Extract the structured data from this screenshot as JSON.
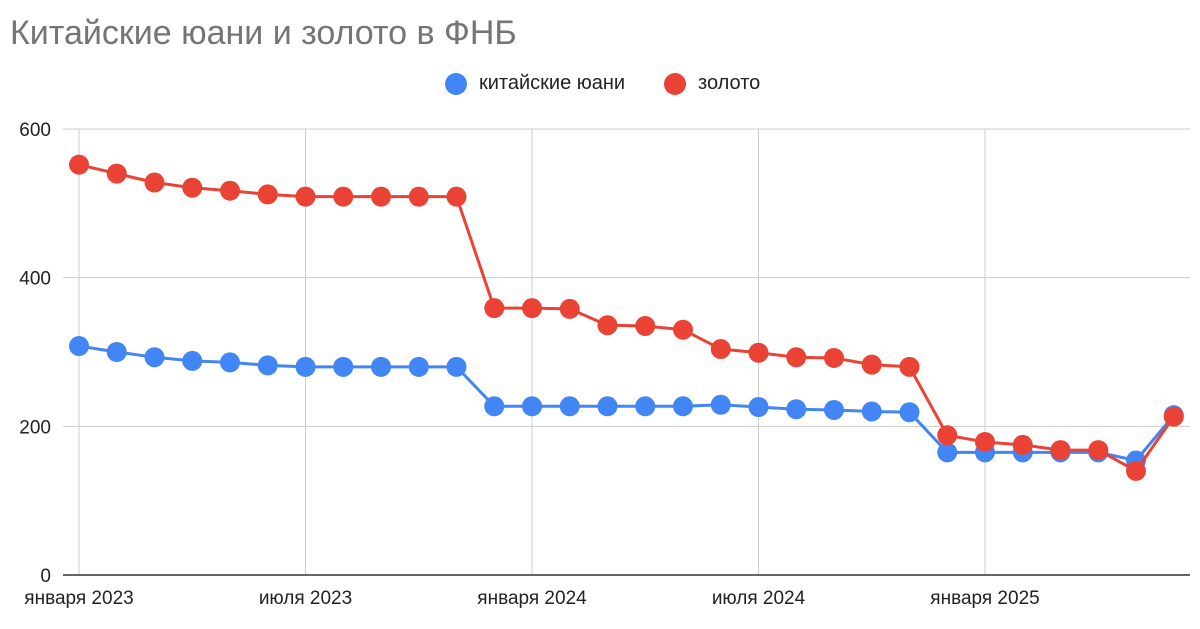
{
  "chart_data": {
    "type": "line",
    "title": "Китайские юани и золото в ФНБ",
    "xlabel": "",
    "ylabel": "",
    "ylim": [
      0,
      600
    ],
    "y_ticks": [
      0,
      200,
      400,
      600
    ],
    "x_ticks": [
      {
        "label": "января 2023",
        "index": 0
      },
      {
        "label": "июля 2023",
        "index": 6
      },
      {
        "label": "января 2024",
        "index": 12
      },
      {
        "label": "июля 2024",
        "index": 18
      },
      {
        "label": "января 2025",
        "index": 24
      }
    ],
    "categories": [
      "2023-01",
      "2023-02",
      "2023-03",
      "2023-04",
      "2023-05",
      "2023-06",
      "2023-07",
      "2023-08",
      "2023-09",
      "2023-10",
      "2023-11",
      "2023-12",
      "2024-01",
      "2024-02",
      "2024-03",
      "2024-04",
      "2024-05",
      "2024-06",
      "2024-07",
      "2024-08",
      "2024-09",
      "2024-10",
      "2024-11",
      "2024-12",
      "2025-01",
      "2025-02",
      "2025-03",
      "2025-04",
      "2025-05",
      "2025-06"
    ],
    "series": [
      {
        "name": "китайские юани",
        "color": "#4285f4",
        "values": [
          308,
          300,
          293,
          288,
          286,
          282,
          280,
          280,
          280,
          280,
          280,
          227,
          227,
          227,
          227,
          227,
          227,
          229,
          226,
          223,
          222,
          220,
          219,
          165,
          165,
          165,
          165,
          165,
          154,
          215
        ]
      },
      {
        "name": "золото",
        "color": "#ea4335",
        "values": [
          552,
          540,
          528,
          521,
          517,
          512,
          509,
          509,
          509,
          509,
          509,
          359,
          359,
          358,
          336,
          335,
          330,
          304,
          299,
          293,
          292,
          283,
          280,
          188,
          179,
          175,
          168,
          168,
          140,
          213
        ]
      }
    ],
    "grid": true,
    "legend": "top-center"
  }
}
